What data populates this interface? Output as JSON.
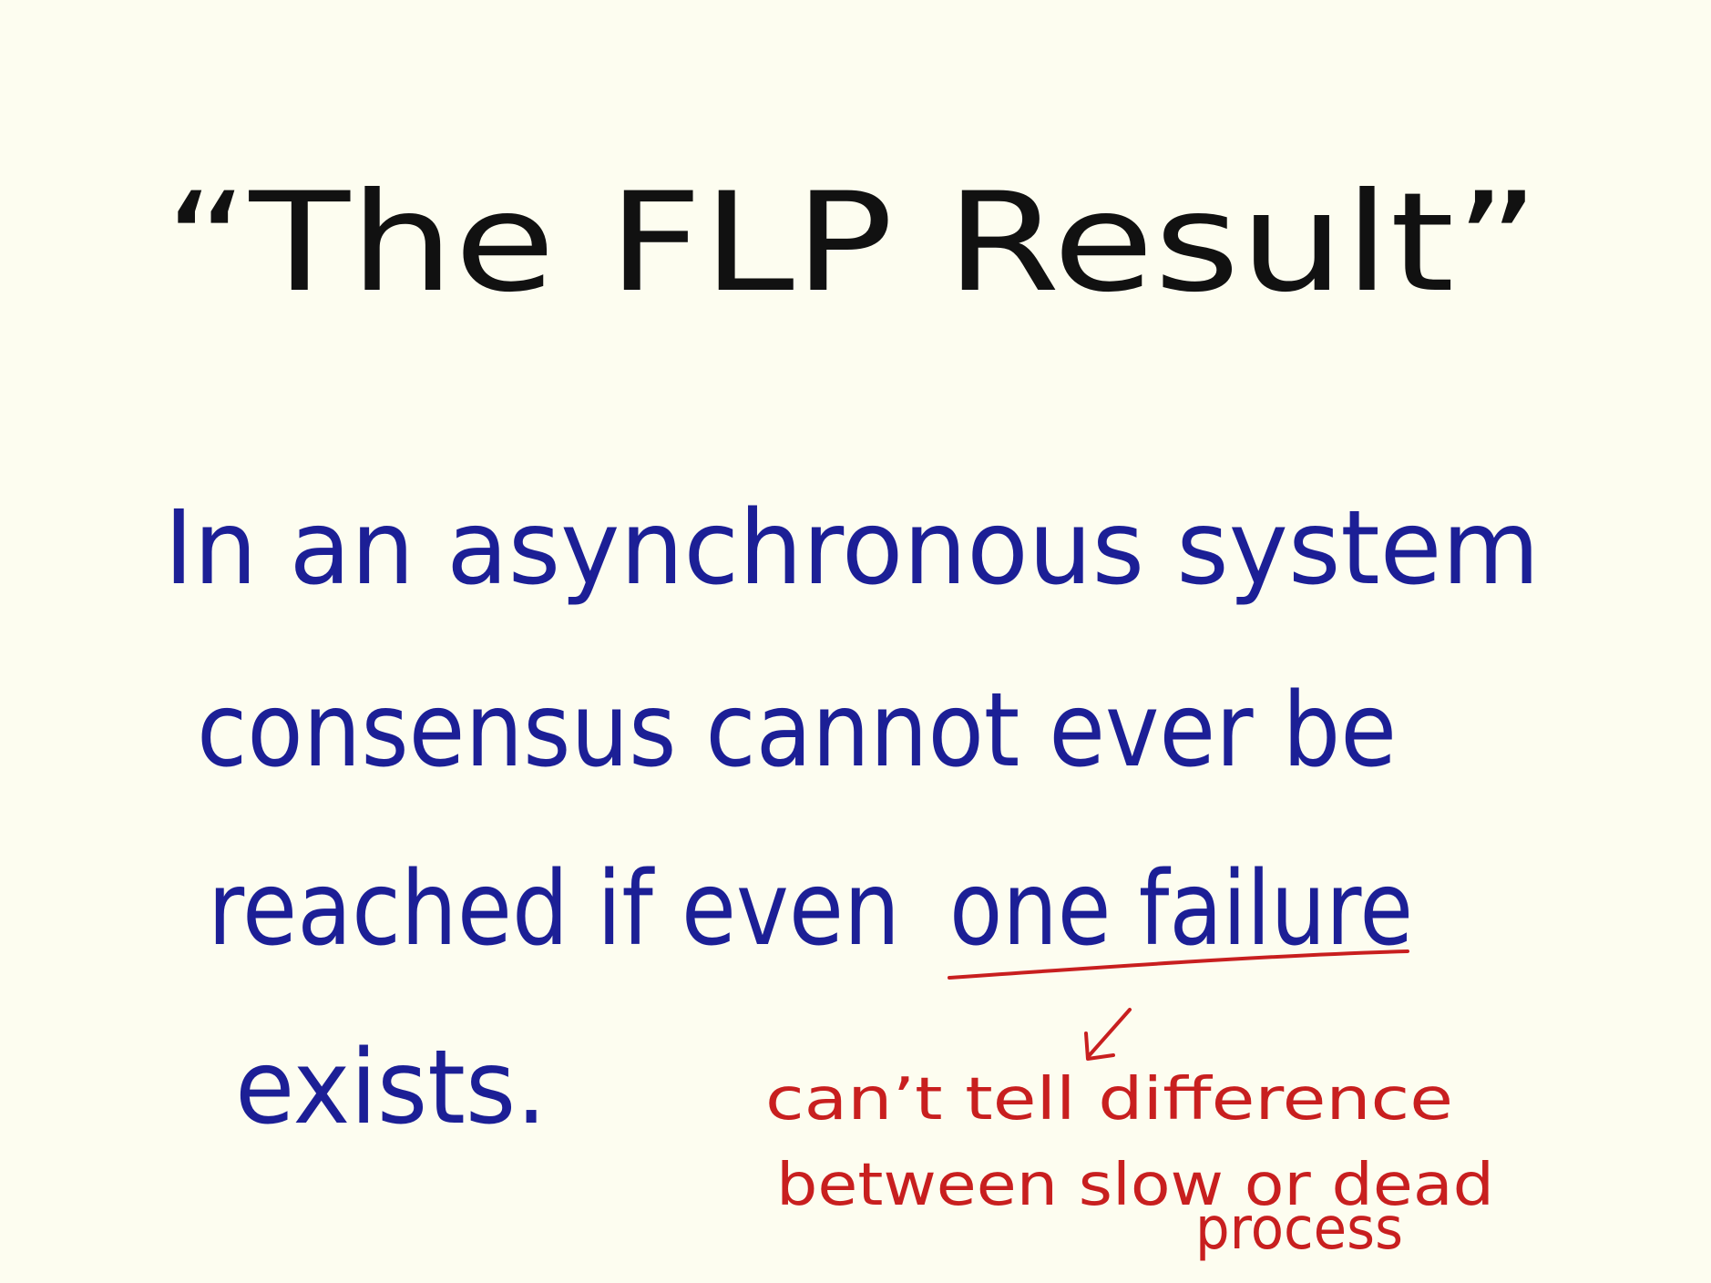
{
  "title": "“The FLP Result”",
  "statement": {
    "lines": [
      "In an asynchronous system",
      "consensus cannot ever be",
      "reached if even",
      "exists."
    ],
    "emphasis": "one failure"
  },
  "annotation": {
    "lines": [
      "can’t tell difference",
      "between slow or dead",
      "process"
    ]
  }
}
